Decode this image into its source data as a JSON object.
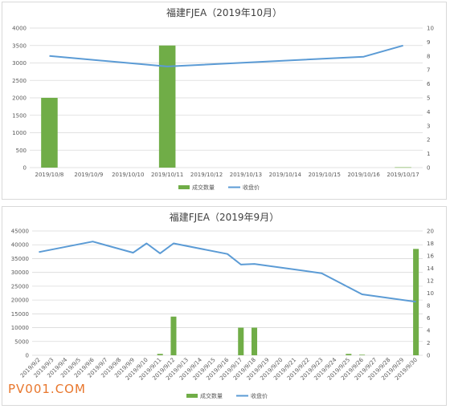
{
  "watermark": "PV001.COM",
  "colors": {
    "bar": "#70ad47",
    "line": "#5b9bd5",
    "grid": "#d9d9d9",
    "text": "#595959"
  },
  "chart_data": [
    {
      "type": "bar",
      "title": "福建FJEA（2019年10月）",
      "categories": [
        "2019/10/8",
        "2019/10/9",
        "2019/10/10",
        "2019/10/11",
        "2019/10/12",
        "2019/10/13",
        "2019/10/14",
        "2019/10/15",
        "2019/10/16",
        "2019/10/17"
      ],
      "series": [
        {
          "name": "成交数量",
          "type": "bar",
          "axis": "left",
          "values": [
            2000,
            0,
            0,
            3500,
            0,
            0,
            0,
            0,
            0,
            10
          ]
        },
        {
          "name": "收盘价",
          "type": "line",
          "axis": "right",
          "values": [
            8.0,
            null,
            null,
            7.25,
            null,
            null,
            null,
            null,
            7.95,
            8.75
          ]
        }
      ],
      "ylim": [
        0,
        4000
      ],
      "y2lim": [
        0,
        10
      ],
      "yticks": [
        0,
        500,
        1000,
        1500,
        2000,
        2500,
        3000,
        3500,
        4000
      ],
      "y2ticks": [
        0,
        1,
        2,
        3,
        4,
        5,
        6,
        7,
        8,
        9,
        10
      ],
      "grid": true,
      "legend": "bottom"
    },
    {
      "type": "bar",
      "title": "福建FJEA（2019年9月）",
      "categories": [
        "2019/9/2",
        "2019/9/3",
        "2019/9/4",
        "2019/9/5",
        "2019/9/6",
        "2019/9/7",
        "2019/9/8",
        "2019/9/9",
        "2019/9/10",
        "2019/9/11",
        "2019/9/12",
        "2019/9/13",
        "2019/9/14",
        "2019/9/15",
        "2019/9/16",
        "2019/9/17",
        "2019/9/18",
        "2019/9/19",
        "2019/9/20",
        "2019/9/21",
        "2019/9/22",
        "2019/9/23",
        "2019/9/24",
        "2019/9/25",
        "2019/9/26",
        "2019/9/27",
        "2019/9/28",
        "2019/9/29",
        "2019/9/30"
      ],
      "series": [
        {
          "name": "成交数量",
          "type": "bar",
          "axis": "left",
          "values": [
            0,
            0,
            0,
            0,
            0,
            0,
            0,
            0,
            0,
            500,
            14000,
            0,
            0,
            0,
            0,
            10000,
            10000,
            0,
            0,
            0,
            0,
            0,
            0,
            500,
            200,
            0,
            0,
            0,
            38500
          ]
        },
        {
          "name": "收盘价",
          "type": "line",
          "axis": "right",
          "values": [
            16.6,
            null,
            null,
            null,
            18.3,
            null,
            null,
            16.5,
            18.0,
            16.4,
            18.0,
            null,
            null,
            null,
            16.3,
            14.6,
            14.7,
            null,
            null,
            null,
            null,
            13.2,
            null,
            null,
            9.8,
            null,
            null,
            null,
            8.6
          ]
        }
      ],
      "ylim": [
        0,
        45000
      ],
      "y2lim": [
        0,
        20
      ],
      "yticks": [
        0,
        5000,
        10000,
        15000,
        20000,
        25000,
        30000,
        35000,
        40000,
        45000
      ],
      "y2ticks": [
        0,
        2,
        4,
        6,
        8,
        10,
        12,
        14,
        16,
        18,
        20
      ],
      "grid": true,
      "legend": "bottom"
    }
  ]
}
